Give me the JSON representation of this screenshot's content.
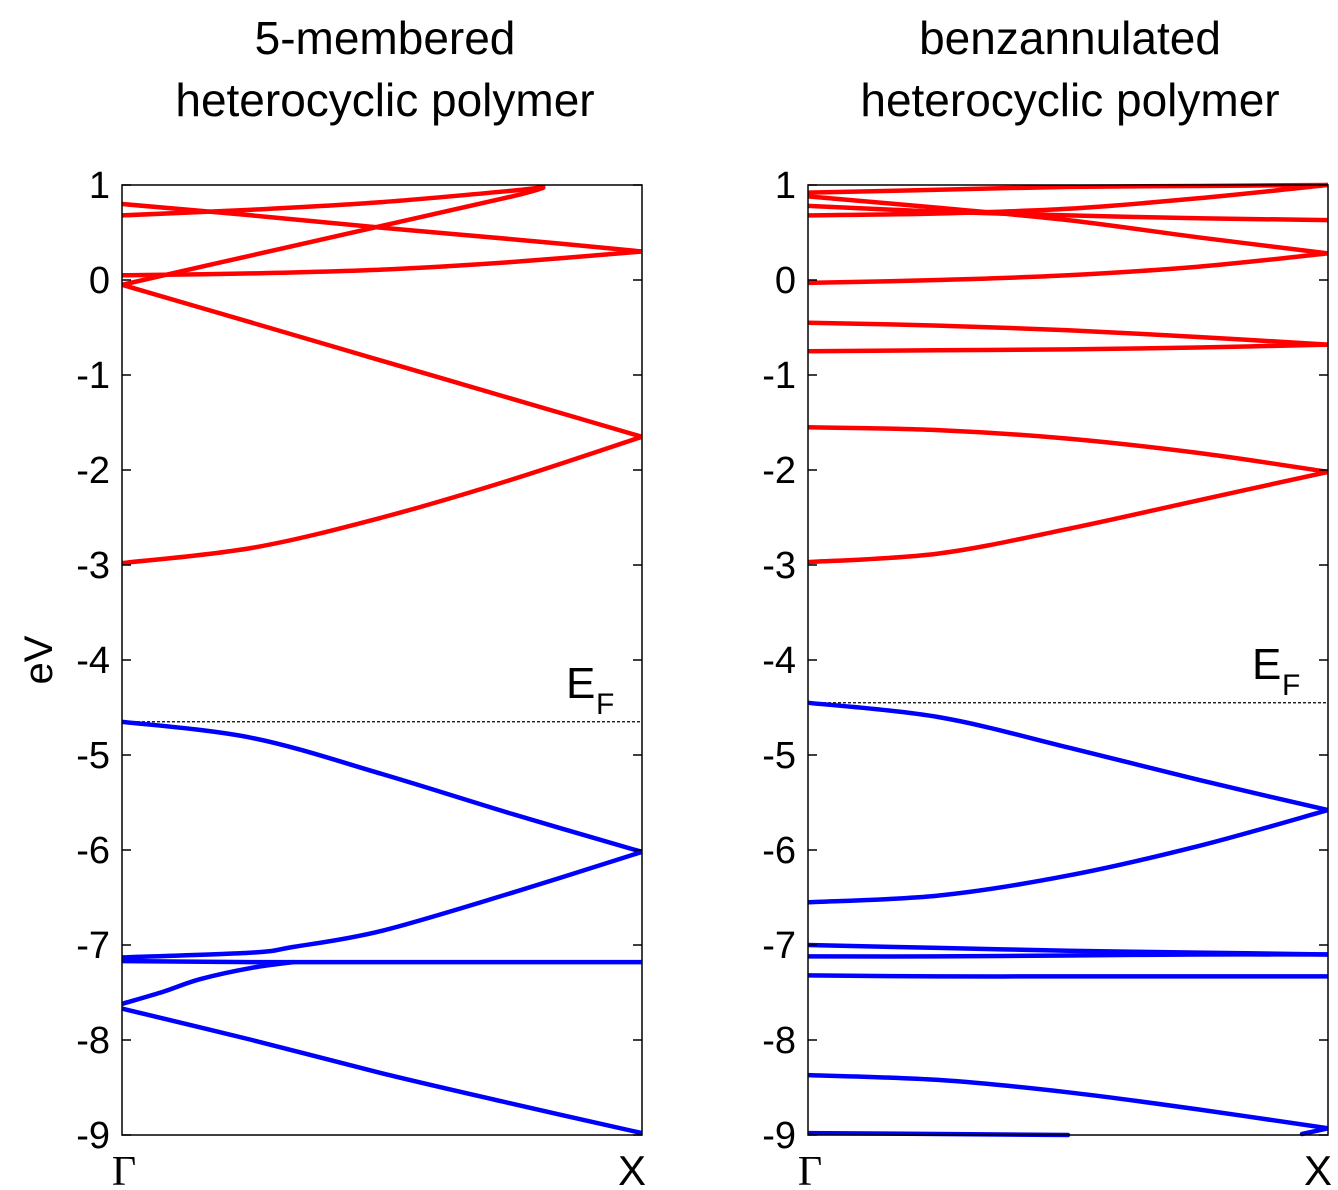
{
  "ylabel": "eV",
  "chart_data": [
    {
      "type": "line",
      "title_lines": [
        "5-membered",
        "heterocyclic polymer"
      ],
      "ylabel": "eV",
      "ylim": [
        -9,
        1
      ],
      "yticks": [
        1,
        0,
        -1,
        -2,
        -3,
        -4,
        -5,
        -6,
        -7,
        -8,
        -9
      ],
      "ytick_labels": [
        "1",
        "0",
        "-1",
        "-2",
        "-3",
        "-4",
        "-5",
        "-6",
        "-7",
        "-8",
        "-9"
      ],
      "xlim": [
        0,
        1
      ],
      "xtick_labels": [
        "Γ",
        "X"
      ],
      "fermi_level": -4.65,
      "fermi_label": "E",
      "fermi_subscript": "F",
      "grid": false,
      "series": [
        {
          "color": "#ff0000",
          "x": [
            0,
            0.25,
            0.5,
            0.75,
            1.0
          ],
          "y": [
            0.05,
            0.07,
            0.11,
            0.19,
            0.3
          ]
        },
        {
          "color": "#ff0000",
          "x": [
            0,
            0.25,
            0.5,
            0.75,
            0.81
          ],
          "y": [
            -0.05,
            0.26,
            0.57,
            0.88,
            0.97
          ]
        },
        {
          "color": "#ff0000",
          "x": [
            0,
            0.25,
            0.5,
            0.75,
            1.0
          ],
          "y": [
            0.8,
            0.68,
            0.55,
            0.43,
            0.3
          ]
        },
        {
          "color": "#ff0000",
          "x": [
            0,
            0.25,
            0.5,
            0.75,
            0.81
          ],
          "y": [
            0.68,
            0.74,
            0.82,
            0.94,
            0.98
          ]
        },
        {
          "color": "#ff0000",
          "x": [
            0,
            0.25,
            0.5,
            0.75,
            1.0
          ],
          "y": [
            -0.05,
            -0.45,
            -0.85,
            -1.25,
            -1.65
          ]
        },
        {
          "color": "#ff0000",
          "x": [
            0,
            0.25,
            0.5,
            0.75,
            1.0
          ],
          "y": [
            -2.98,
            -2.82,
            -2.5,
            -2.1,
            -1.65
          ]
        },
        {
          "color": "#0000ff",
          "x": [
            0,
            0.25,
            0.5,
            0.75,
            1.0
          ],
          "y": [
            -4.65,
            -4.82,
            -5.2,
            -5.62,
            -6.02
          ]
        },
        {
          "color": "#0000ff",
          "x": [
            0,
            0.25,
            0.33,
            0.5,
            0.75,
            1.0
          ],
          "y": [
            -7.13,
            -7.08,
            -7.02,
            -6.85,
            -6.45,
            -6.02
          ]
        },
        {
          "color": "#0000ff",
          "x": [
            0,
            0.25,
            0.5,
            0.75,
            1.0
          ],
          "y": [
            -7.17,
            -7.18,
            -7.18,
            -7.18,
            -7.18
          ]
        },
        {
          "color": "#0000ff",
          "x": [
            0,
            0.08,
            0.15,
            0.25,
            0.33
          ],
          "y": [
            -7.62,
            -7.49,
            -7.36,
            -7.24,
            -7.18
          ]
        },
        {
          "color": "#0000ff",
          "x": [
            0,
            0.25,
            0.5,
            0.75,
            1.0
          ],
          "y": [
            -7.67,
            -8.0,
            -8.35,
            -8.67,
            -8.98
          ]
        }
      ]
    },
    {
      "type": "line",
      "title_lines": [
        "benzannulated",
        "heterocyclic polymer"
      ],
      "ylabel": "",
      "ylim": [
        -9,
        1
      ],
      "yticks": [
        1,
        0,
        -1,
        -2,
        -3,
        -4,
        -5,
        -6,
        -7,
        -8,
        -9
      ],
      "ytick_labels": [
        "1",
        "0",
        "-1",
        "-2",
        "-3",
        "-4",
        "-5",
        "-6",
        "-7",
        "-8",
        "-9"
      ],
      "xlim": [
        0,
        1
      ],
      "xtick_labels": [
        "Γ",
        "X"
      ],
      "fermi_level": -4.45,
      "fermi_label": "E",
      "fermi_subscript": "F",
      "grid": false,
      "series": [
        {
          "color": "#ff0000",
          "x": [
            0,
            0.25,
            0.5,
            0.75,
            1.0
          ],
          "y": [
            0.92,
            0.95,
            0.98,
            0.99,
            1.0
          ]
        },
        {
          "color": "#ff0000",
          "x": [
            0,
            0.25,
            0.5,
            0.75,
            1.0
          ],
          "y": [
            0.88,
            0.76,
            0.63,
            0.45,
            0.28
          ]
        },
        {
          "color": "#ff0000",
          "x": [
            0,
            0.25,
            0.5,
            0.75,
            1.0
          ],
          "y": [
            0.78,
            0.72,
            0.68,
            0.65,
            0.63
          ]
        },
        {
          "color": "#ff0000",
          "x": [
            0,
            0.25,
            0.5,
            0.75,
            1.0
          ],
          "y": [
            0.68,
            0.7,
            0.75,
            0.86,
            1.0
          ]
        },
        {
          "color": "#ff0000",
          "x": [
            0,
            0.25,
            0.5,
            0.75,
            1.0
          ],
          "y": [
            -0.03,
            0.0,
            0.05,
            0.14,
            0.28
          ]
        },
        {
          "color": "#ff0000",
          "x": [
            0,
            0.25,
            0.5,
            0.75,
            1.0
          ],
          "y": [
            -0.45,
            -0.48,
            -0.53,
            -0.6,
            -0.68
          ]
        },
        {
          "color": "#ff0000",
          "x": [
            0,
            0.25,
            0.5,
            0.75,
            1.0
          ],
          "y": [
            -0.75,
            -0.74,
            -0.73,
            -0.71,
            -0.68
          ]
        },
        {
          "color": "#ff0000",
          "x": [
            0,
            0.25,
            0.5,
            0.75,
            1.0
          ],
          "y": [
            -1.55,
            -1.58,
            -1.67,
            -1.82,
            -2.02
          ]
        },
        {
          "color": "#ff0000",
          "x": [
            0,
            0.25,
            0.5,
            0.75,
            1.0
          ],
          "y": [
            -2.97,
            -2.88,
            -2.62,
            -2.32,
            -2.02
          ]
        },
        {
          "color": "#0000ff",
          "x": [
            0,
            0.25,
            0.5,
            0.75,
            1.0
          ],
          "y": [
            -4.45,
            -4.6,
            -4.92,
            -5.26,
            -5.58
          ]
        },
        {
          "color": "#0000ff",
          "x": [
            0,
            0.25,
            0.5,
            0.75,
            1.0
          ],
          "y": [
            -6.55,
            -6.48,
            -6.27,
            -5.96,
            -5.58
          ]
        },
        {
          "color": "#0000ff",
          "x": [
            0,
            0.25,
            0.5,
            0.75,
            1.0
          ],
          "y": [
            -7.0,
            -7.03,
            -7.06,
            -7.08,
            -7.1
          ]
        },
        {
          "color": "#0000ff",
          "x": [
            0,
            0.25,
            0.5,
            0.75,
            1.0
          ],
          "y": [
            -7.12,
            -7.12,
            -7.11,
            -7.1,
            -7.1
          ]
        },
        {
          "color": "#0000ff",
          "x": [
            0,
            0.25,
            0.5,
            0.75,
            1.0
          ],
          "y": [
            -7.32,
            -7.33,
            -7.33,
            -7.33,
            -7.33
          ]
        },
        {
          "color": "#0000ff",
          "x": [
            0,
            0.25,
            0.5,
            0.75,
            1.0
          ],
          "y": [
            -8.37,
            -8.42,
            -8.55,
            -8.73,
            -8.93
          ]
        },
        {
          "color": "#0000ff",
          "x": [
            0,
            0.25,
            0.5
          ],
          "y": [
            -8.98,
            -8.99,
            -9.0
          ]
        },
        {
          "color": "#0000ff",
          "x": [
            0.95,
            1.0
          ],
          "y": [
            -8.99,
            -8.93
          ]
        }
      ]
    }
  ]
}
